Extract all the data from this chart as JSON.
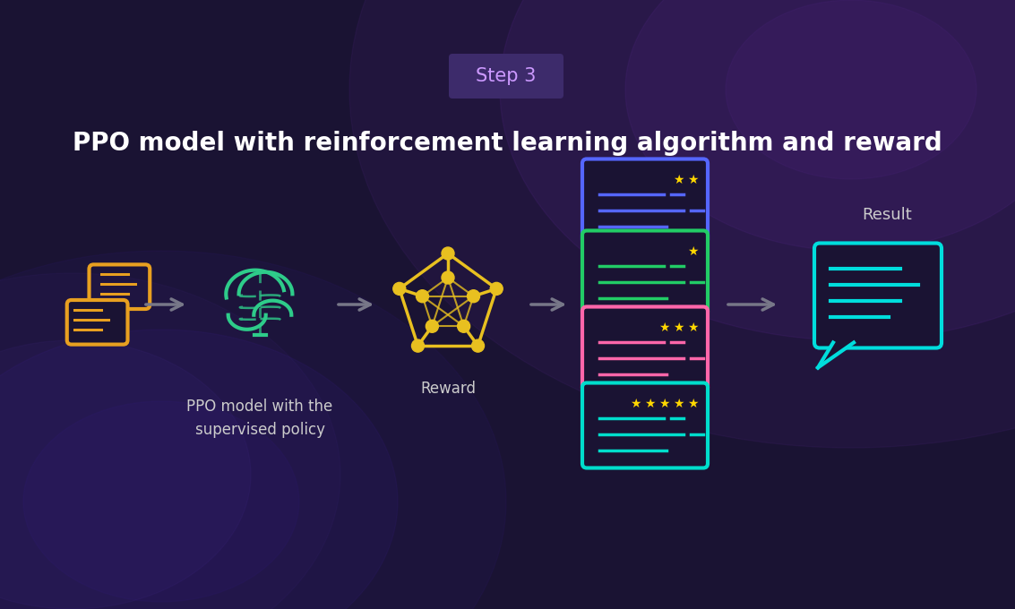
{
  "bg_color": "#1a1333",
  "title": "PPO model with reinforcement learning algorithm and reward",
  "title_color": "#ffffff",
  "title_fontsize": 20,
  "step_label": "Step 3",
  "step_bg": "#3d2b6b",
  "step_text_color": "#cc99ff",
  "step_fontsize": 15,
  "arrow_color": "#777788",
  "chat_icon_color": "#e8a020",
  "brain_color": "#2ecc8a",
  "reward_color": "#e8c020",
  "result_color": "#00dddd",
  "result_label": "Result",
  "result_label_color": "#cccccc",
  "card_colors": [
    "#5566ff",
    "#22cc66",
    "#ff66aa",
    "#00ddcc"
  ],
  "card_stars": [
    2,
    1,
    3,
    5
  ],
  "ppo_label": "PPO model with the\nsupervised policy",
  "reward_label": "Reward",
  "label_color": "#cccccc",
  "label_fontsize": 12,
  "glow_tr_color": "#7733bb",
  "glow_bl_color": "#4422aa"
}
